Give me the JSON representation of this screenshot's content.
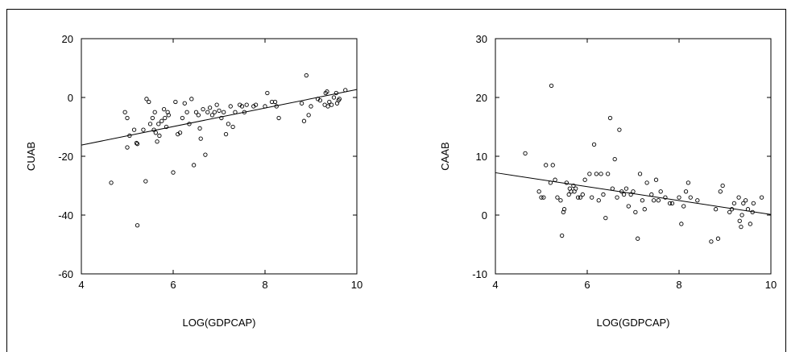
{
  "chart_data": [
    {
      "type": "scatter",
      "xlabel": "LOG(GDPCAP)",
      "ylabel": "CUAB",
      "xlim": [
        4,
        10
      ],
      "ylim": [
        -60,
        20
      ],
      "xticks": [
        4,
        6,
        8,
        10
      ],
      "yticks": [
        -60,
        -40,
        -20,
        0,
        20
      ],
      "grid": false,
      "fit_line": {
        "x": [
          4,
          10
        ],
        "y": [
          -16.2,
          2.7
        ]
      },
      "points": [
        [
          4.65,
          -29
        ],
        [
          4.95,
          -5
        ],
        [
          5.0,
          -7
        ],
        [
          5.0,
          -17
        ],
        [
          5.05,
          -13
        ],
        [
          5.15,
          -11
        ],
        [
          5.2,
          -15.5
        ],
        [
          5.22,
          -15.8
        ],
        [
          5.22,
          -43.5
        ],
        [
          5.35,
          -11
        ],
        [
          5.4,
          -28.5
        ],
        [
          5.42,
          -0.5
        ],
        [
          5.47,
          -1.5
        ],
        [
          5.5,
          -9
        ],
        [
          5.55,
          -7
        ],
        [
          5.58,
          -11
        ],
        [
          5.6,
          -5
        ],
        [
          5.62,
          -12
        ],
        [
          5.65,
          -15
        ],
        [
          5.68,
          -9
        ],
        [
          5.7,
          -13
        ],
        [
          5.75,
          -8
        ],
        [
          5.8,
          -4
        ],
        [
          5.82,
          -7
        ],
        [
          5.85,
          -10
        ],
        [
          5.88,
          -5
        ],
        [
          5.9,
          -6
        ],
        [
          6.0,
          -25.5
        ],
        [
          6.05,
          -1.5
        ],
        [
          6.1,
          -12.5
        ],
        [
          6.15,
          -12
        ],
        [
          6.2,
          -7
        ],
        [
          6.25,
          -2
        ],
        [
          6.3,
          -5
        ],
        [
          6.35,
          -9
        ],
        [
          6.4,
          -0.5
        ],
        [
          6.45,
          -23
        ],
        [
          6.5,
          -5
        ],
        [
          6.55,
          -6
        ],
        [
          6.58,
          -10.5
        ],
        [
          6.6,
          -14
        ],
        [
          6.65,
          -4
        ],
        [
          6.7,
          -19.5
        ],
        [
          6.75,
          -5
        ],
        [
          6.8,
          -3.5
        ],
        [
          6.85,
          -6
        ],
        [
          6.9,
          -5
        ],
        [
          6.95,
          -2.5
        ],
        [
          7.0,
          -4.5
        ],
        [
          7.05,
          -7
        ],
        [
          7.1,
          -5
        ],
        [
          7.15,
          -12.5
        ],
        [
          7.2,
          -9
        ],
        [
          7.25,
          -3
        ],
        [
          7.3,
          -10
        ],
        [
          7.35,
          -5
        ],
        [
          7.45,
          -2.5
        ],
        [
          7.5,
          -3
        ],
        [
          7.55,
          -5
        ],
        [
          7.6,
          -2.5
        ],
        [
          7.75,
          -3
        ],
        [
          7.8,
          -2.5
        ],
        [
          8.0,
          -3
        ],
        [
          8.05,
          1.5
        ],
        [
          8.15,
          -1.5
        ],
        [
          8.22,
          -1.5
        ],
        [
          8.25,
          -3
        ],
        [
          8.3,
          -7
        ],
        [
          8.8,
          -2
        ],
        [
          8.85,
          -8
        ],
        [
          8.9,
          7.5
        ],
        [
          8.95,
          -6
        ],
        [
          9.0,
          -3
        ],
        [
          9.15,
          -0.5
        ],
        [
          9.2,
          -1
        ],
        [
          9.3,
          -2.5
        ],
        [
          9.32,
          1.5
        ],
        [
          9.35,
          2
        ],
        [
          9.37,
          -3
        ],
        [
          9.4,
          -1.5
        ],
        [
          9.45,
          -2.5
        ],
        [
          9.5,
          0
        ],
        [
          9.55,
          1.5
        ],
        [
          9.57,
          -2
        ],
        [
          9.6,
          -1
        ],
        [
          9.62,
          -0.5
        ],
        [
          9.75,
          2.5
        ]
      ]
    },
    {
      "type": "scatter",
      "xlabel": "LOG(GDPCAP)",
      "ylabel": "CAAB",
      "xlim": [
        4,
        10
      ],
      "ylim": [
        -10,
        30
      ],
      "xticks": [
        4,
        6,
        8,
        10
      ],
      "yticks": [
        -10,
        0,
        10,
        20,
        30
      ],
      "grid": false,
      "fit_line": {
        "x": [
          4,
          10
        ],
        "y": [
          7.2,
          0.1
        ]
      },
      "points": [
        [
          4.65,
          10.5
        ],
        [
          4.95,
          4
        ],
        [
          5.0,
          3
        ],
        [
          5.05,
          3
        ],
        [
          5.1,
          8.5
        ],
        [
          5.2,
          5.5
        ],
        [
          5.22,
          22
        ],
        [
          5.25,
          8.5
        ],
        [
          5.3,
          6
        ],
        [
          5.35,
          3
        ],
        [
          5.42,
          2.5
        ],
        [
          5.45,
          -3.5
        ],
        [
          5.48,
          0.5
        ],
        [
          5.5,
          1
        ],
        [
          5.55,
          5.5
        ],
        [
          5.6,
          3.5
        ],
        [
          5.62,
          4.5
        ],
        [
          5.65,
          4
        ],
        [
          5.7,
          5
        ],
        [
          5.72,
          4
        ],
        [
          5.75,
          4.5
        ],
        [
          5.8,
          3
        ],
        [
          5.85,
          3
        ],
        [
          5.9,
          3.5
        ],
        [
          5.95,
          6
        ],
        [
          6.05,
          7
        ],
        [
          6.1,
          3
        ],
        [
          6.15,
          12
        ],
        [
          6.2,
          7
        ],
        [
          6.25,
          2.5
        ],
        [
          6.3,
          7
        ],
        [
          6.35,
          3.5
        ],
        [
          6.4,
          -0.5
        ],
        [
          6.45,
          7
        ],
        [
          6.5,
          16.5
        ],
        [
          6.55,
          4.5
        ],
        [
          6.6,
          9.5
        ],
        [
          6.65,
          3
        ],
        [
          6.7,
          14.5
        ],
        [
          6.75,
          4
        ],
        [
          6.8,
          3.5
        ],
        [
          6.85,
          4.5
        ],
        [
          6.9,
          1.5
        ],
        [
          6.95,
          3.5
        ],
        [
          7.0,
          4
        ],
        [
          7.05,
          0.5
        ],
        [
          7.1,
          -4
        ],
        [
          7.15,
          7
        ],
        [
          7.2,
          2.5
        ],
        [
          7.25,
          1
        ],
        [
          7.3,
          5.5
        ],
        [
          7.4,
          3.5
        ],
        [
          7.45,
          2.5
        ],
        [
          7.5,
          6
        ],
        [
          7.55,
          2.5
        ],
        [
          7.6,
          4
        ],
        [
          7.7,
          3
        ],
        [
          7.8,
          2
        ],
        [
          7.85,
          2
        ],
        [
          8.0,
          3
        ],
        [
          8.05,
          -1.5
        ],
        [
          8.1,
          1.5
        ],
        [
          8.15,
          4
        ],
        [
          8.2,
          5.5
        ],
        [
          8.25,
          3
        ],
        [
          8.4,
          2.5
        ],
        [
          8.7,
          -4.5
        ],
        [
          8.8,
          1
        ],
        [
          8.85,
          -4
        ],
        [
          8.9,
          4
        ],
        [
          8.95,
          5
        ],
        [
          9.1,
          0.5
        ],
        [
          9.15,
          1
        ],
        [
          9.2,
          2
        ],
        [
          9.3,
          3
        ],
        [
          9.32,
          -1
        ],
        [
          9.35,
          -2
        ],
        [
          9.37,
          0
        ],
        [
          9.4,
          2
        ],
        [
          9.45,
          2.5
        ],
        [
          9.5,
          1
        ],
        [
          9.55,
          -1.5
        ],
        [
          9.6,
          0.5
        ],
        [
          9.62,
          2
        ],
        [
          9.8,
          3
        ]
      ]
    }
  ]
}
